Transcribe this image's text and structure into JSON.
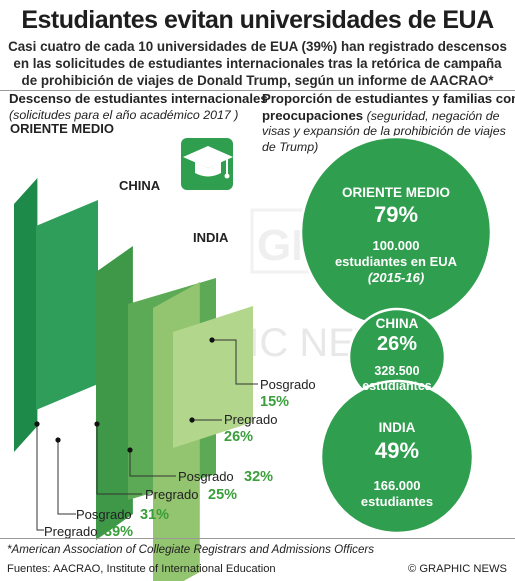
{
  "header": {
    "title": "Estudiantes evitan universidades de EUA",
    "subtitle_lines": [
      "Casi cuatro de cada 10 universidades de EUA (39%) han registrado descensos",
      "en las solicitudes de estudiantes internacionales tras la retórica de campaña",
      "de prohibición de viajes de Donald Trump, según un informe de AACRAO*"
    ]
  },
  "left_panel": {
    "title": "Descenso de estudiantes internacionales",
    "note": "(solicitudes para el año académico 2017 )"
  },
  "right_panel": {
    "title": "Proporción de estudiantes y familias con",
    "title_bold_line2": "preocupaciones",
    "note_line1": " (seguridad, negación de",
    "note_line2": "visas y expansión de la prohibición de viajes",
    "note_line3": "de Trump)"
  },
  "chart_data": [
    {
      "type": "bar",
      "title": "Descenso de estudiantes internacionales",
      "subtitle": "(solicitudes para el año académico 2017 )",
      "categories": [
        "ORIENTE MEDIO",
        "CHINA",
        "INDIA"
      ],
      "series": [
        {
          "name": "Pregrado",
          "values": [
            39,
            25,
            26
          ]
        },
        {
          "name": "Posgrado",
          "values": [
            31,
            32,
            15
          ]
        }
      ],
      "labels": {
        "pregrado": "Pregrado",
        "posgrado": "Posgrado",
        "values": {
          "ORIENTE MEDIO": {
            "pregrado": "39%",
            "posgrado": "31%"
          },
          "CHINA": {
            "pregrado": "25%",
            "posgrado": "32%"
          },
          "INDIA": {
            "pregrado": "26%",
            "posgrado": "15%"
          }
        }
      },
      "colors": {
        "mideast_back": "#1e8a4a",
        "mideast_front": "#2e9e5a",
        "china_back": "#3f9848",
        "china_front": "#5daa56",
        "india_back": "#93c46f",
        "india_front": "#b2d68c",
        "label_green": "#3a9e3a"
      }
    },
    {
      "type": "bubble",
      "title": "Proporción de estudiantes y familias con preocupaciones",
      "categories": [
        "ORIENTE MEDIO",
        "CHINA",
        "INDIA"
      ],
      "values": [
        79,
        26,
        49
      ],
      "value_labels": [
        "79%",
        "26%",
        "49%"
      ],
      "detail": [
        [
          "100.000",
          "estudiantes en EUA",
          "(2015-16)"
        ],
        [
          "328.500",
          "estudiantes"
        ],
        [
          "166.000",
          "estudiantes"
        ]
      ],
      "color": "#2f9e4e"
    }
  ],
  "footer": {
    "footnote": "*American Association of Collegiate Registrars and Admissions Officers",
    "source": "Fuentes: AACRAO, Institute of International Education",
    "credit": "© GRAPHIC NEWS"
  },
  "watermark": "GRAPHIC NEWS",
  "icons": [
    "graduation-cap-icon"
  ]
}
